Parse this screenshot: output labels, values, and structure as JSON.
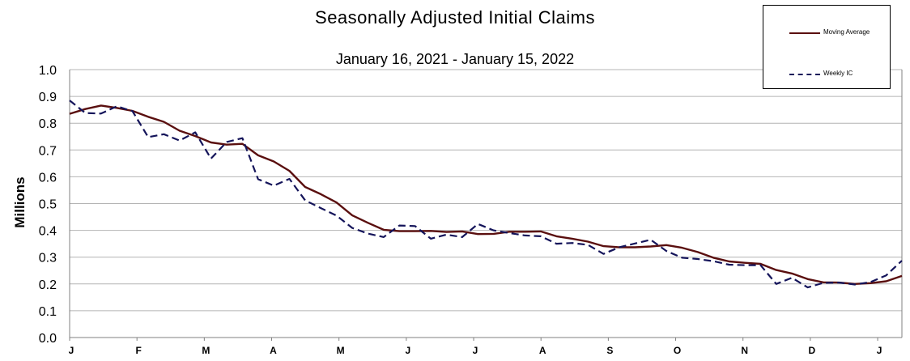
{
  "chart_data": {
    "type": "line",
    "title": "Seasonally Adjusted Initial Claims",
    "subtitle": "January 16, 2021 - January 15, 2022",
    "ylabel": "Millions",
    "ylim": [
      0.0,
      1.0
    ],
    "y_ticks": [
      "0.0",
      "0.1",
      "0.2",
      "0.3",
      "0.4",
      "0.5",
      "0.6",
      "0.7",
      "0.8",
      "0.9",
      "1.0"
    ],
    "x_ticks": [
      "J",
      "F",
      "M",
      "A",
      "M",
      "J",
      "J",
      "A",
      "S",
      "O",
      "N",
      "D",
      "J"
    ],
    "grid": "horizontal",
    "legend_position": "top-right",
    "series": [
      {
        "name": "Moving Average",
        "color": "#5a0f0f",
        "style": "solid",
        "values": [
          0.835,
          0.853,
          0.866,
          0.857,
          0.846,
          0.824,
          0.805,
          0.772,
          0.752,
          0.728,
          0.72,
          0.723,
          0.68,
          0.657,
          0.622,
          0.562,
          0.535,
          0.504,
          0.456,
          0.428,
          0.402,
          0.397,
          0.397,
          0.398,
          0.394,
          0.396,
          0.386,
          0.387,
          0.395,
          0.395,
          0.396,
          0.378,
          0.369,
          0.358,
          0.341,
          0.337,
          0.337,
          0.34,
          0.345,
          0.335,
          0.319,
          0.298,
          0.284,
          0.279,
          0.275,
          0.252,
          0.239,
          0.218,
          0.206,
          0.205,
          0.2,
          0.203,
          0.21,
          0.23
        ]
      },
      {
        "name": "Weekly IC",
        "color": "#14145a",
        "style": "dashed",
        "values": [
          0.885,
          0.838,
          0.836,
          0.863,
          0.845,
          0.748,
          0.759,
          0.735,
          0.766,
          0.668,
          0.73,
          0.744,
          0.591,
          0.567,
          0.592,
          0.512,
          0.483,
          0.455,
          0.409,
          0.388,
          0.375,
          0.418,
          0.416,
          0.369,
          0.384,
          0.375,
          0.424,
          0.4,
          0.39,
          0.381,
          0.378,
          0.35,
          0.353,
          0.346,
          0.312,
          0.337,
          0.351,
          0.365,
          0.323,
          0.298,
          0.293,
          0.285,
          0.272,
          0.27,
          0.27,
          0.2,
          0.223,
          0.187,
          0.204,
          0.205,
          0.198,
          0.207,
          0.232,
          0.287
        ]
      }
    ]
  },
  "legend": {
    "items": [
      {
        "label": "Moving Average"
      },
      {
        "label": "Weekly IC"
      }
    ]
  }
}
